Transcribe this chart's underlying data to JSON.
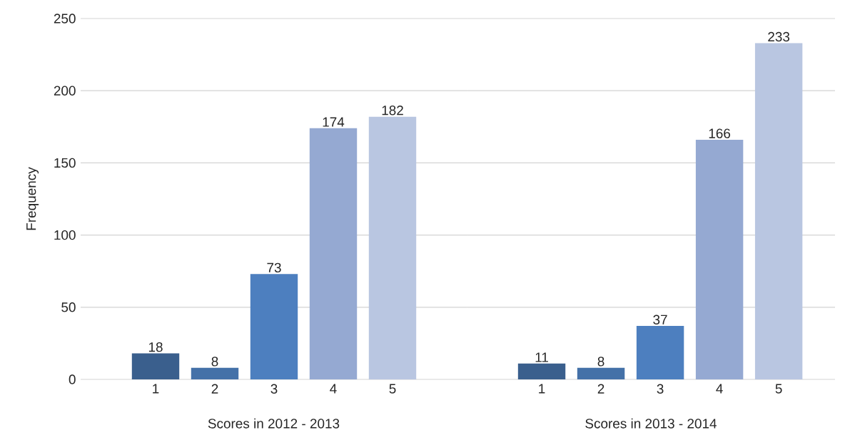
{
  "chart_data": [
    {
      "type": "bar",
      "xlabel": "Scores in 2012 - 2013",
      "ylabel": "Frequency",
      "categories": [
        "1",
        "2",
        "3",
        "4",
        "5"
      ],
      "values": [
        18,
        8,
        73,
        174,
        182
      ],
      "colors": [
        "#3a5f8d",
        "#4471a8",
        "#4d7fbf",
        "#95a9d2",
        "#b9c6e1"
      ],
      "ylim": [
        0,
        250
      ],
      "yticks": [
        0,
        50,
        100,
        150,
        200,
        250
      ],
      "grid": "y",
      "data_labels": true
    },
    {
      "type": "bar",
      "xlabel": "Scores in 2013 - 2014",
      "categories": [
        "1",
        "2",
        "3",
        "4",
        "5"
      ],
      "values": [
        11,
        8,
        37,
        166,
        233
      ],
      "colors": [
        "#3a5f8d",
        "#4471a8",
        "#4d7fbf",
        "#95a9d2",
        "#b9c6e1"
      ],
      "ylim": [
        0,
        250
      ],
      "yticks": [
        0,
        50,
        100,
        150,
        200,
        250
      ],
      "grid": "y",
      "data_labels": true,
      "tick_labels": "x"
    }
  ]
}
